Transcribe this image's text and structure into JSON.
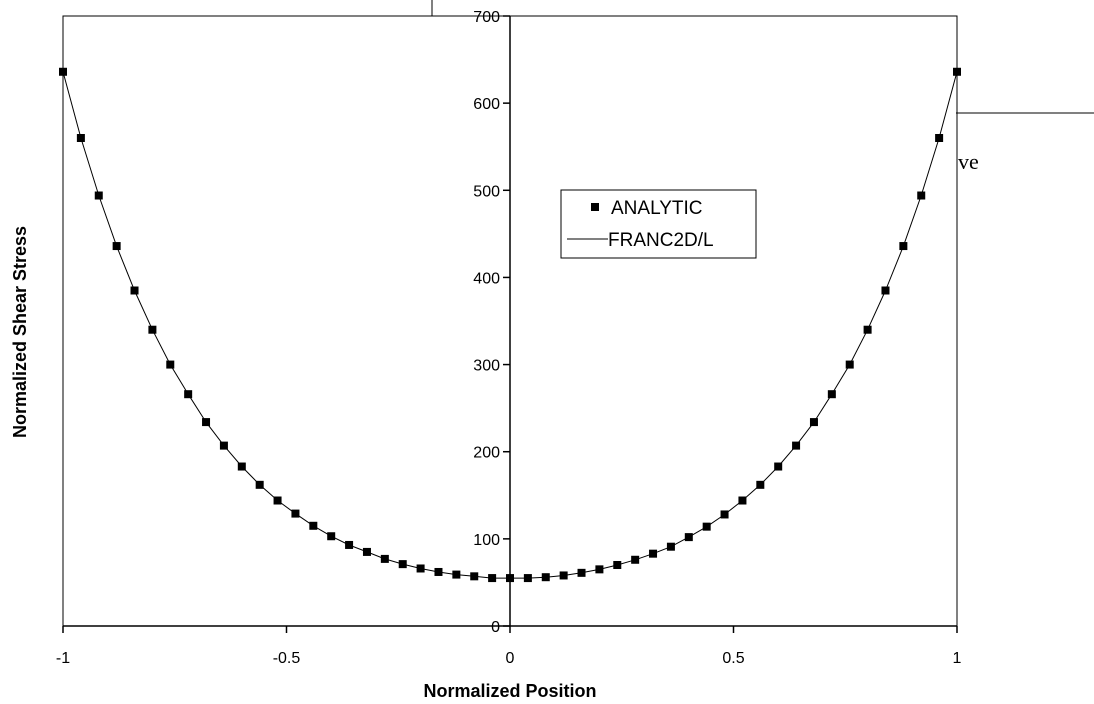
{
  "background_fragment": {
    "text": "ve"
  },
  "chart_data": {
    "type": "scatter",
    "xlabel": "Normalized Position",
    "ylabel": "Normalized Shear Stress",
    "xlim": [
      -1,
      1
    ],
    "ylim": [
      0,
      700
    ],
    "x_ticks": [
      -1,
      -0.5,
      0,
      0.5,
      1
    ],
    "x_tick_labels": [
      "-1",
      "-0.5",
      "0",
      "0.5",
      "1"
    ],
    "y_ticks": [
      0,
      100,
      200,
      300,
      400,
      500,
      600,
      700
    ],
    "y_tick_labels": [
      "0",
      "100",
      "200",
      "300",
      "400",
      "500",
      "600",
      "700"
    ],
    "grid": false,
    "legend_position": "center-right",
    "series": [
      {
        "name": "ANALYTIC",
        "style": "square-markers",
        "color": "#000000",
        "x": [
          -1,
          -0.96,
          -0.92,
          -0.88,
          -0.84,
          -0.8,
          -0.76,
          -0.72,
          -0.68,
          -0.64,
          -0.6,
          -0.56,
          -0.52,
          -0.48,
          -0.44,
          -0.4,
          -0.36,
          -0.32,
          -0.28,
          -0.24,
          -0.2,
          -0.16,
          -0.12,
          -0.08,
          -0.04,
          0,
          0.04,
          0.08,
          0.12,
          0.16,
          0.2,
          0.24,
          0.28,
          0.32,
          0.36,
          0.4,
          0.44,
          0.48,
          0.52,
          0.56,
          0.6,
          0.64,
          0.68,
          0.72,
          0.76,
          0.8,
          0.84,
          0.88,
          0.92,
          0.96,
          1
        ],
        "y": [
          636,
          560,
          494,
          436,
          385,
          340,
          300,
          266,
          234,
          207,
          183,
          162,
          144,
          129,
          115,
          103,
          93,
          85,
          77,
          71,
          66,
          62,
          59,
          57,
          55,
          55,
          55,
          56,
          58,
          61,
          65,
          70,
          76,
          83,
          91,
          102,
          114,
          128,
          144,
          162,
          183,
          207,
          234,
          266,
          300,
          340,
          385,
          436,
          494,
          560,
          636
        ]
      },
      {
        "name": "FRANC2D/L",
        "style": "line",
        "color": "#000000",
        "x": [
          -1,
          -0.96,
          -0.92,
          -0.88,
          -0.84,
          -0.8,
          -0.76,
          -0.72,
          -0.68,
          -0.64,
          -0.6,
          -0.56,
          -0.52,
          -0.48,
          -0.44,
          -0.4,
          -0.36,
          -0.32,
          -0.28,
          -0.24,
          -0.2,
          -0.16,
          -0.12,
          -0.08,
          -0.04,
          0,
          0.04,
          0.08,
          0.12,
          0.16,
          0.2,
          0.24,
          0.28,
          0.32,
          0.36,
          0.4,
          0.44,
          0.48,
          0.52,
          0.56,
          0.6,
          0.64,
          0.68,
          0.72,
          0.76,
          0.8,
          0.84,
          0.88,
          0.92,
          0.96,
          1
        ],
        "y": [
          636,
          560,
          494,
          436,
          385,
          340,
          300,
          266,
          234,
          207,
          183,
          162,
          144,
          129,
          115,
          103,
          93,
          85,
          77,
          71,
          66,
          62,
          59,
          57,
          55,
          55,
          55,
          56,
          58,
          61,
          65,
          70,
          76,
          83,
          91,
          102,
          114,
          128,
          144,
          162,
          183,
          207,
          234,
          266,
          300,
          340,
          385,
          436,
          494,
          560,
          636
        ]
      }
    ]
  }
}
